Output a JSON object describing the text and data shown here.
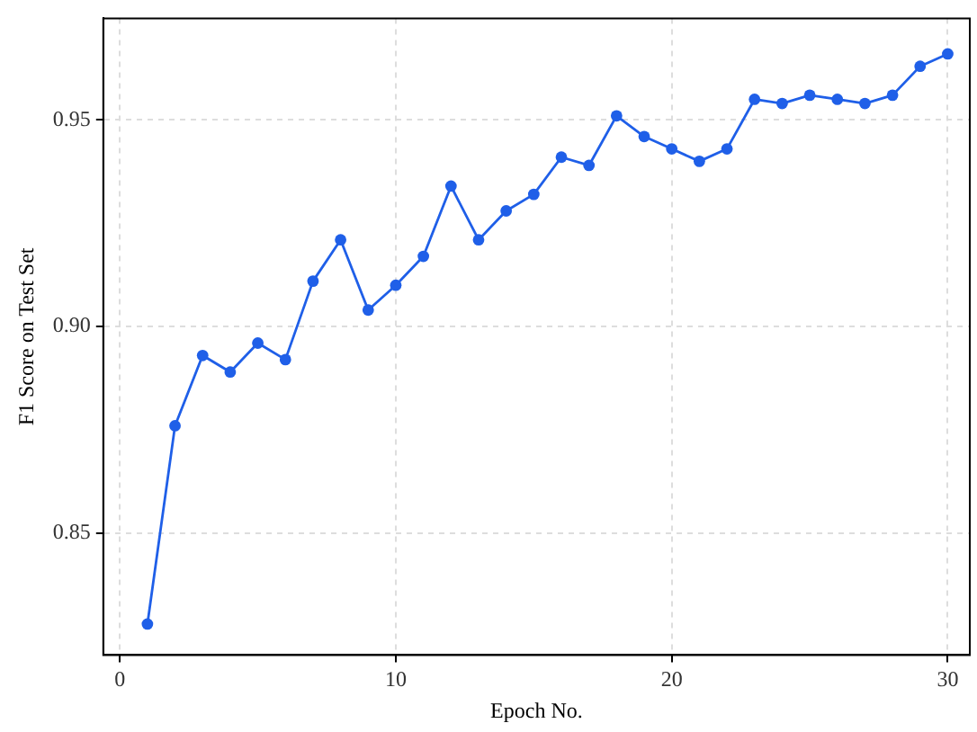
{
  "chart_data": {
    "type": "line",
    "xlabel": "Epoch No.",
    "ylabel": "F1 Score on Test Set",
    "x": [
      1,
      2,
      3,
      4,
      5,
      6,
      7,
      8,
      9,
      10,
      11,
      12,
      13,
      14,
      15,
      16,
      17,
      18,
      19,
      20,
      21,
      22,
      23,
      24,
      25,
      26,
      27,
      28,
      29,
      30
    ],
    "series": [
      {
        "color": "#1f5fe8",
        "values": [
          0.828,
          0.876,
          0.893,
          0.889,
          0.896,
          0.892,
          0.911,
          0.921,
          0.904,
          0.91,
          0.917,
          0.934,
          0.921,
          0.928,
          0.932,
          0.941,
          0.939,
          0.951,
          0.946,
          0.943,
          0.94,
          0.943,
          0.955,
          0.954,
          0.956,
          0.955,
          0.954,
          0.956,
          0.963,
          0.966
        ]
      }
    ],
    "xlim": [
      -0.6,
      30.8
    ],
    "xticks": [
      0,
      10,
      20,
      30
    ],
    "ylim": [
      0.8205,
      0.9746
    ],
    "yticks": [
      {
        "value": 0.85,
        "label": "0.85"
      },
      {
        "value": 0.9,
        "label": "0.90"
      },
      {
        "value": 0.95,
        "label": "0.95"
      }
    ],
    "grid": true,
    "legend": false,
    "marker": "circle",
    "line_style": "solid"
  }
}
